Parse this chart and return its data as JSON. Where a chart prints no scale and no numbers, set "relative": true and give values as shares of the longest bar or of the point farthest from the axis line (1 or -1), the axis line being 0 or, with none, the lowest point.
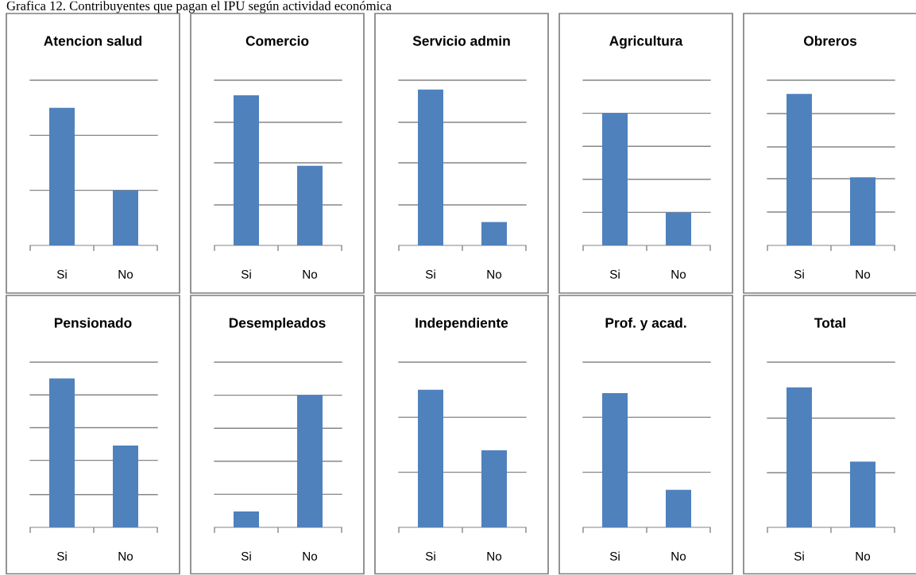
{
  "chart_data": [
    {
      "type": "bar",
      "title": "Atencion salud",
      "categories": [
        "Si",
        "No"
      ],
      "values": [
        1,
        0.4
      ],
      "color": "#4f81bd",
      "relative": true,
      "ref_lines": [
        {
          "axis": "y",
          "value": 0.4,
          "color": "#868686"
        },
        {
          "axis": "y",
          "value": 0.8,
          "color": "#868686"
        },
        {
          "axis": "y",
          "value": 1.2,
          "color": "#868686"
        }
      ],
      "annotations": [
        "Grafica 12. Contribuyentes que pagan el IPU según actividad económica"
      ]
    },
    {
      "type": "bar",
      "title": "Comercio",
      "categories": [
        "Si",
        "No"
      ],
      "values": [
        1,
        0.53
      ],
      "color": "#4f81bd",
      "relative": true,
      "ref_lines": [
        {
          "axis": "y",
          "value": 0.27,
          "color": "#868686"
        },
        {
          "axis": "y",
          "value": 0.55,
          "color": "#868686"
        },
        {
          "axis": "y",
          "value": 0.82,
          "color": "#868686"
        },
        {
          "axis": "y",
          "value": 1.1,
          "color": "#868686"
        }
      ]
    },
    {
      "type": "bar",
      "title": "Servicio admin",
      "categories": [
        "Si",
        "No"
      ],
      "values": [
        1,
        0.15
      ],
      "color": "#4f81bd",
      "relative": true,
      "ref_lines": [
        {
          "axis": "y",
          "value": 0.26,
          "color": "#868686"
        },
        {
          "axis": "y",
          "value": 0.53,
          "color": "#868686"
        },
        {
          "axis": "y",
          "value": 0.79,
          "color": "#868686"
        },
        {
          "axis": "y",
          "value": 1.06,
          "color": "#868686"
        }
      ]
    },
    {
      "type": "bar",
      "title": "Agricultura",
      "categories": [
        "Si",
        "No"
      ],
      "values": [
        1,
        0.25
      ],
      "color": "#4f81bd",
      "relative": true,
      "ref_lines": [
        {
          "axis": "y",
          "value": 0.25,
          "color": "#868686"
        },
        {
          "axis": "y",
          "value": 0.5,
          "color": "#868686"
        },
        {
          "axis": "y",
          "value": 0.75,
          "color": "#868686"
        },
        {
          "axis": "y",
          "value": 1,
          "color": "#868686"
        },
        {
          "axis": "y",
          "value": 1.25,
          "color": "#868686"
        }
      ]
    },
    {
      "type": "bar",
      "title": "Obreros",
      "categories": [
        "Si",
        "No"
      ],
      "values": [
        1,
        0.45
      ],
      "color": "#4f81bd",
      "relative": true,
      "ref_lines": [
        {
          "axis": "y",
          "value": 0.22,
          "color": "#868686"
        },
        {
          "axis": "y",
          "value": 0.44,
          "color": "#868686"
        },
        {
          "axis": "y",
          "value": 0.65,
          "color": "#868686"
        },
        {
          "axis": "y",
          "value": 0.87,
          "color": "#868686"
        },
        {
          "axis": "y",
          "value": 1.09,
          "color": "#868686"
        }
      ]
    },
    {
      "type": "bar",
      "title": "Pensionado",
      "categories": [
        "Si",
        "No"
      ],
      "values": [
        1,
        0.55
      ],
      "color": "#4f81bd",
      "relative": true,
      "ref_lines": [
        {
          "axis": "y",
          "value": 0.22,
          "color": "#868686"
        },
        {
          "axis": "y",
          "value": 0.45,
          "color": "#868686"
        },
        {
          "axis": "y",
          "value": 0.67,
          "color": "#868686"
        },
        {
          "axis": "y",
          "value": 0.89,
          "color": "#868686"
        },
        {
          "axis": "y",
          "value": 1.11,
          "color": "#868686"
        }
      ]
    },
    {
      "type": "bar",
      "title": "Desempleados",
      "categories": [
        "Si",
        "No"
      ],
      "values": [
        0.12,
        1
      ],
      "color": "#4f81bd",
      "relative": true,
      "ref_lines": [
        {
          "axis": "y",
          "value": 0.25,
          "color": "#868686"
        },
        {
          "axis": "y",
          "value": 0.5,
          "color": "#868686"
        },
        {
          "axis": "y",
          "value": 0.75,
          "color": "#868686"
        },
        {
          "axis": "y",
          "value": 1,
          "color": "#868686"
        },
        {
          "axis": "y",
          "value": 1.25,
          "color": "#868686"
        }
      ]
    },
    {
      "type": "bar",
      "title": "Independiente",
      "categories": [
        "Si",
        "No"
      ],
      "values": [
        1,
        0.56
      ],
      "color": "#4f81bd",
      "relative": true,
      "ref_lines": [
        {
          "axis": "y",
          "value": 0.4,
          "color": "#868686"
        },
        {
          "axis": "y",
          "value": 0.8,
          "color": "#868686"
        },
        {
          "axis": "y",
          "value": 1.2,
          "color": "#868686"
        }
      ]
    },
    {
      "type": "bar",
      "title": "Prof. y acad.",
      "categories": [
        "Si",
        "No"
      ],
      "values": [
        1,
        0.28
      ],
      "color": "#4f81bd",
      "relative": true,
      "ref_lines": [
        {
          "axis": "y",
          "value": 0.41,
          "color": "#868686"
        },
        {
          "axis": "y",
          "value": 0.82,
          "color": "#868686"
        },
        {
          "axis": "y",
          "value": 1.23,
          "color": "#868686"
        }
      ]
    },
    {
      "type": "bar",
      "title": "Total",
      "categories": [
        "Si",
        "No"
      ],
      "values": [
        1,
        0.47
      ],
      "color": "#4f81bd",
      "relative": true,
      "ref_lines": [
        {
          "axis": "y",
          "value": 0.39,
          "color": "#868686"
        },
        {
          "axis": "y",
          "value": 0.78,
          "color": "#868686"
        },
        {
          "axis": "y",
          "value": 1.18,
          "color": "#868686"
        }
      ]
    }
  ]
}
